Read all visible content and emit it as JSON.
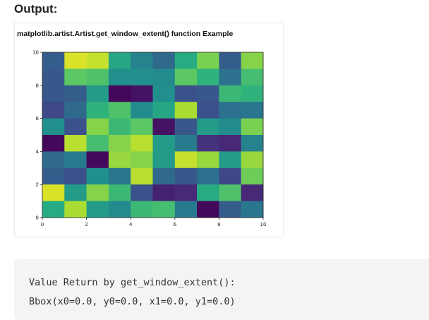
{
  "heading": "Output:",
  "output_lines": [
    "Value Return by get_window_extent():",
    "Bbox(x0=0.0, y0=0.0, x1=0.0, y1=0.0)"
  ],
  "chart_data": {
    "type": "heatmap",
    "title": "matplotlib.artist.Artist.get_window_extent() function Example",
    "xlabel": "",
    "ylabel": "",
    "xlim": [
      0,
      10
    ],
    "ylim": [
      0,
      10
    ],
    "xticks": [
      0,
      2,
      4,
      6,
      8,
      10
    ],
    "yticks": [
      0,
      2,
      4,
      6,
      8,
      10
    ],
    "colormap": "viridis",
    "grid": false,
    "rows_top_to_bottom": [
      [
        0.3,
        0.95,
        0.92,
        0.6,
        0.45,
        0.35,
        0.62,
        0.8,
        0.3,
        0.82
      ],
      [
        0.28,
        0.75,
        0.72,
        0.5,
        0.5,
        0.48,
        0.75,
        0.65,
        0.38,
        0.7
      ],
      [
        0.28,
        0.3,
        0.55,
        0.02,
        0.05,
        0.5,
        0.25,
        0.28,
        0.68,
        0.65
      ],
      [
        0.22,
        0.35,
        0.65,
        0.72,
        0.48,
        0.6,
        0.88,
        0.25,
        0.38,
        0.4
      ],
      [
        0.5,
        0.25,
        0.82,
        0.68,
        0.75,
        0.05,
        0.28,
        0.55,
        0.48,
        0.8
      ],
      [
        0.02,
        0.9,
        0.7,
        0.82,
        0.9,
        0.55,
        0.42,
        0.15,
        0.12,
        0.45
      ],
      [
        0.35,
        0.42,
        0.02,
        0.85,
        0.82,
        0.55,
        0.92,
        0.85,
        0.55,
        0.85
      ],
      [
        0.3,
        0.25,
        0.5,
        0.4,
        0.9,
        0.35,
        0.28,
        0.38,
        0.22,
        0.78
      ],
      [
        0.95,
        0.55,
        0.82,
        0.68,
        0.25,
        0.1,
        0.12,
        0.62,
        0.72,
        0.12
      ],
      [
        0.62,
        0.88,
        0.55,
        0.48,
        0.68,
        0.7,
        0.42,
        0.02,
        0.3,
        0.4
      ]
    ]
  }
}
